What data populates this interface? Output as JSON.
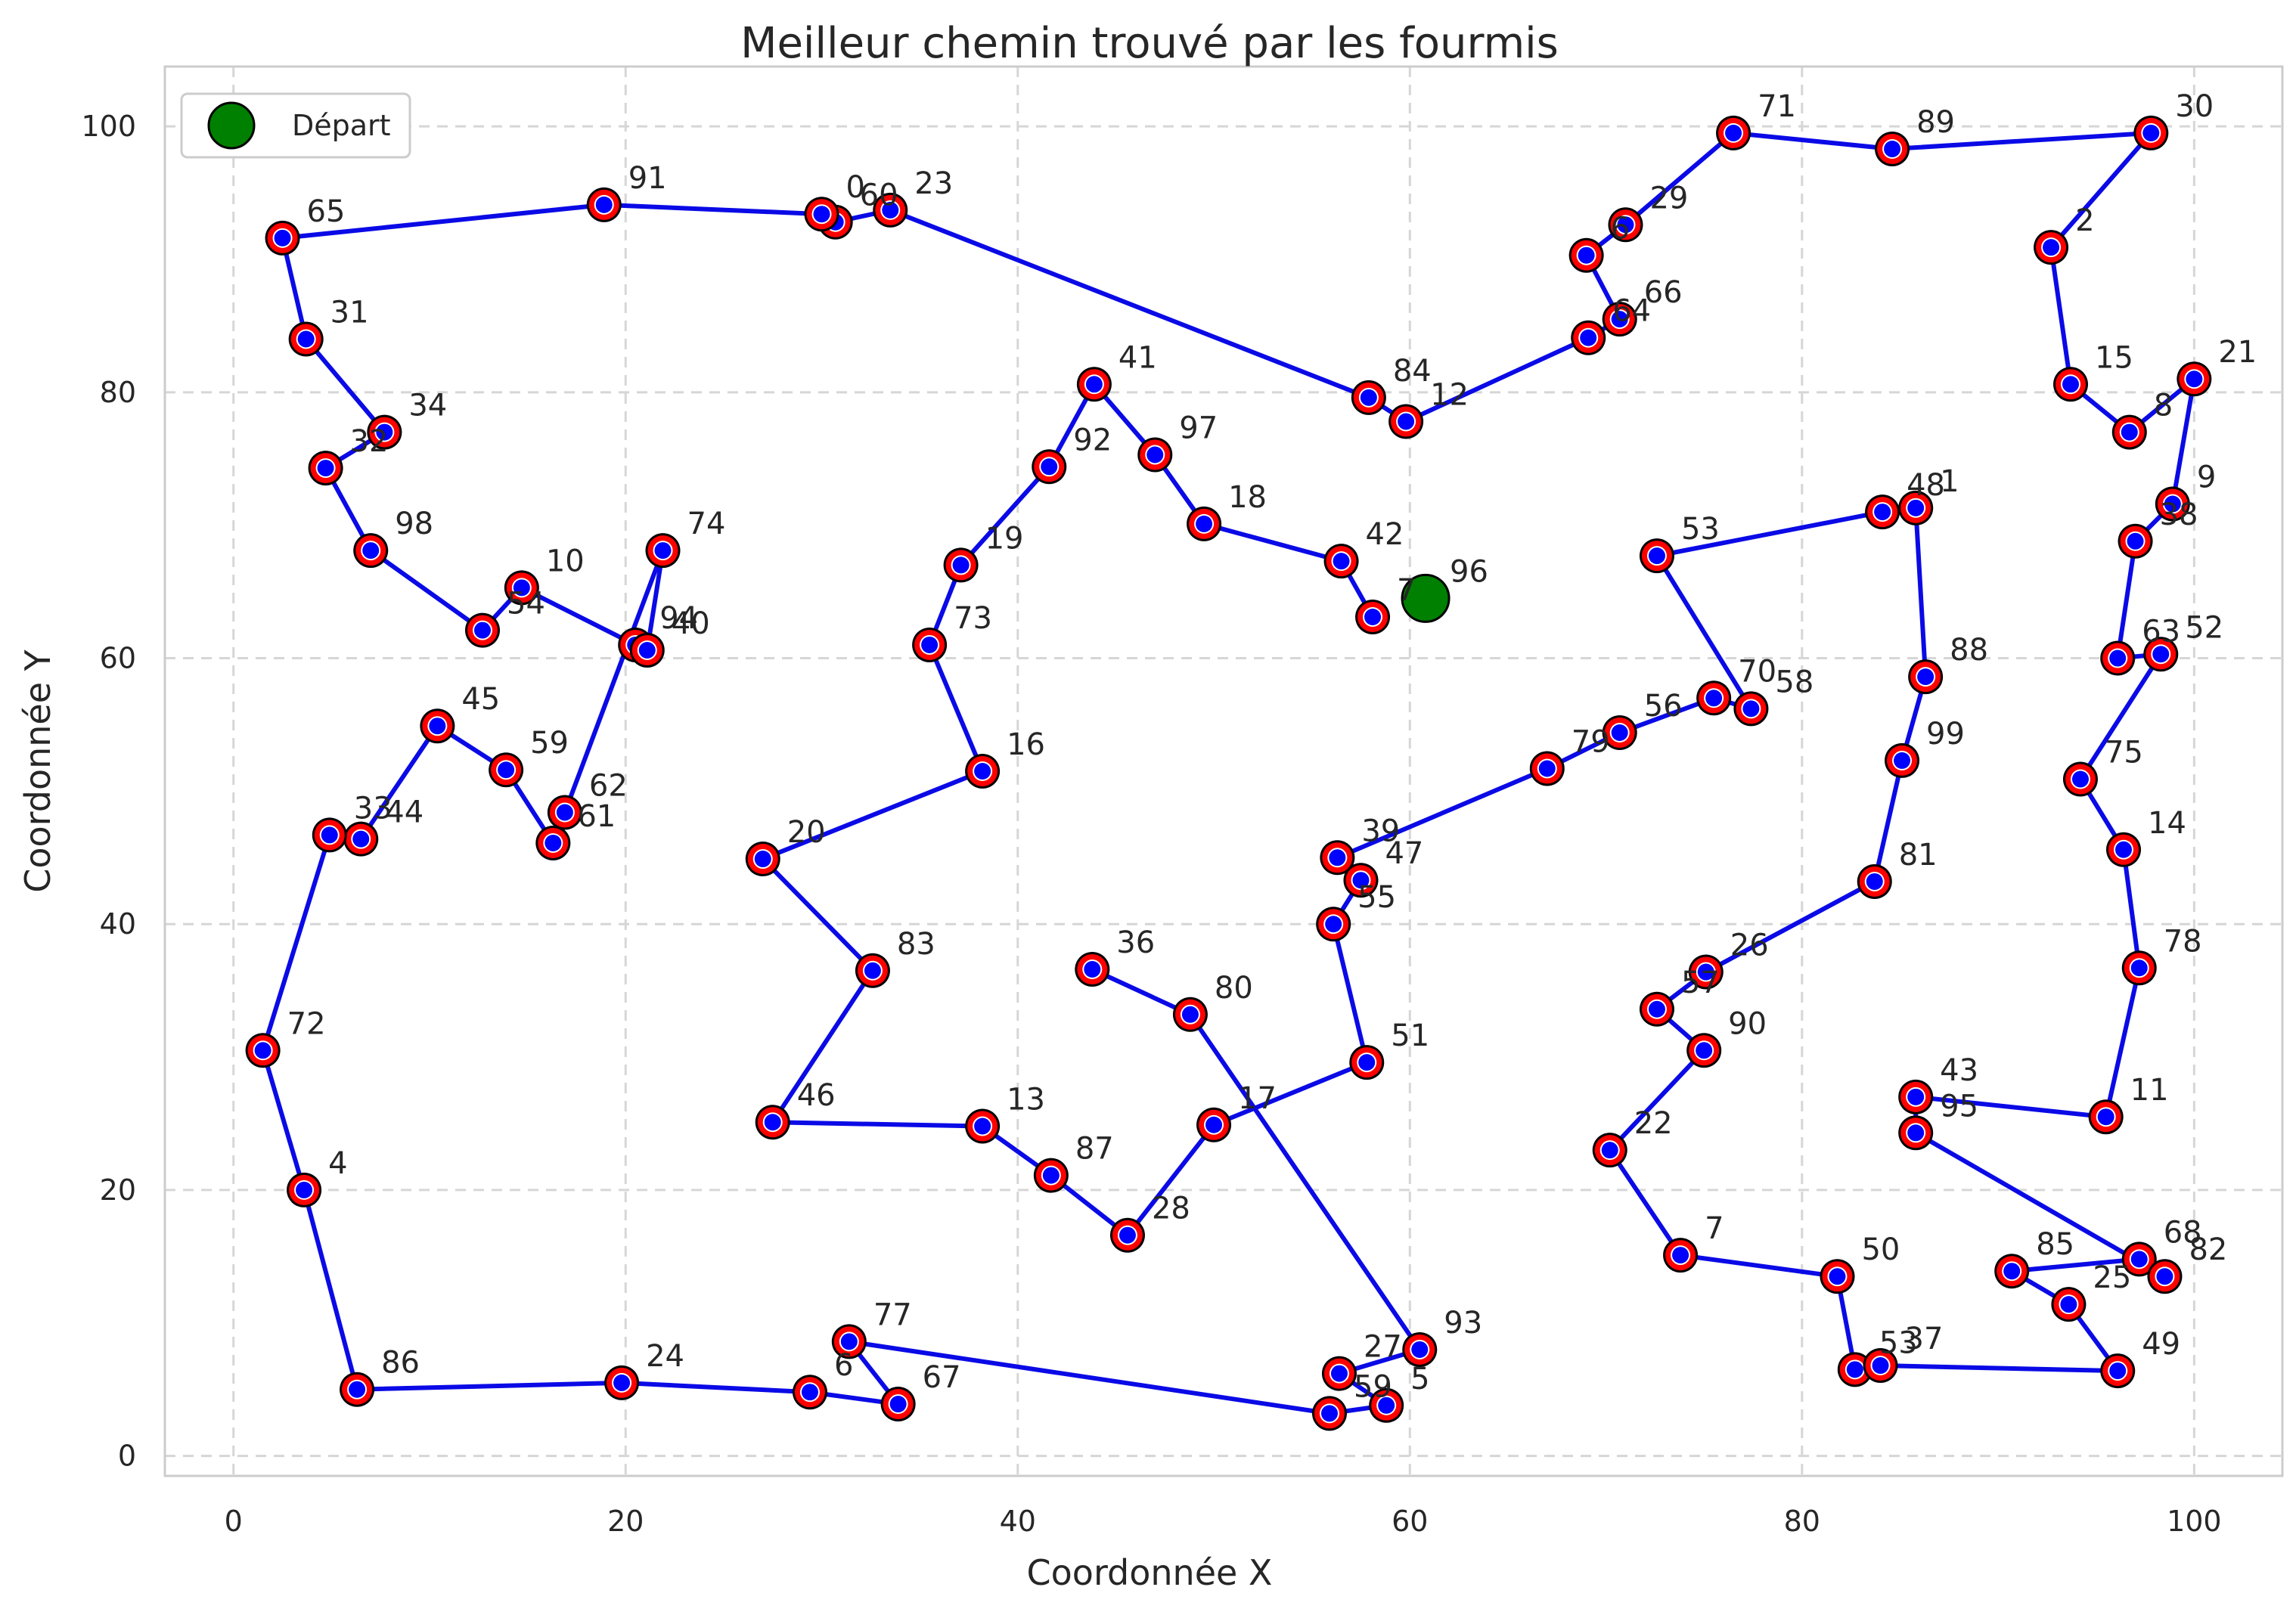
{
  "chart_data": {
    "type": "scatter",
    "title": "Meilleur chemin trouvé par les fourmis",
    "xlabel": "Coordonnée X",
    "ylabel": "Coordonnée Y",
    "xlim": [
      -3.5,
      104.5
    ],
    "ylim": [
      -1.5,
      104.5
    ],
    "xticks": [
      0,
      20,
      40,
      60,
      80,
      100
    ],
    "yticks": [
      0,
      20,
      40,
      60,
      80,
      100
    ],
    "grid": true,
    "legend": {
      "placement": "top-left",
      "entries": [
        "Départ"
      ]
    },
    "colors": {
      "path": "#0a0ae6",
      "node_fill": "#0000ff",
      "node_ring": "#ff0000",
      "start": "#008000",
      "grid": "#d6d6d6"
    },
    "start_node": {
      "id": "96",
      "x": 60.8,
      "y": 64.5
    },
    "nodes": [
      {
        "id": "96",
        "x": 60.8,
        "y": 64.5
      },
      {
        "id": "7",
        "x": 58.1,
        "y": 63.1
      },
      {
        "id": "42",
        "x": 56.5,
        "y": 67.3
      },
      {
        "id": "18",
        "x": 49.5,
        "y": 70.1
      },
      {
        "id": "97",
        "x": 47.0,
        "y": 75.3
      },
      {
        "id": "41",
        "x": 43.9,
        "y": 80.6
      },
      {
        "id": "92",
        "x": 41.6,
        "y": 74.4
      },
      {
        "id": "19",
        "x": 37.1,
        "y": 67.0
      },
      {
        "id": "73",
        "x": 35.5,
        "y": 61.0
      },
      {
        "id": "16",
        "x": 38.2,
        "y": 51.5
      },
      {
        "id": "20",
        "x": 27.0,
        "y": 44.9
      },
      {
        "id": "83",
        "x": 32.6,
        "y": 36.5
      },
      {
        "id": "46",
        "x": 27.5,
        "y": 25.1
      },
      {
        "id": "13",
        "x": 38.2,
        "y": 24.8
      },
      {
        "id": "87",
        "x": 41.7,
        "y": 21.1
      },
      {
        "id": "28",
        "x": 45.6,
        "y": 16.6
      },
      {
        "id": "17",
        "x": 50.0,
        "y": 24.9
      },
      {
        "id": "51",
        "x": 57.8,
        "y": 29.6
      },
      {
        "id": "55",
        "x": 56.1,
        "y": 40.0
      },
      {
        "id": "47",
        "x": 57.5,
        "y": 43.3
      },
      {
        "id": "39",
        "x": 56.3,
        "y": 45.0
      },
      {
        "id": "79",
        "x": 67.0,
        "y": 51.7
      },
      {
        "id": "56",
        "x": 70.7,
        "y": 54.4
      },
      {
        "id": "70",
        "x": 75.5,
        "y": 57.0
      },
      {
        "id": "58",
        "x": 77.4,
        "y": 56.2
      },
      {
        "id": "53",
        "x": 72.6,
        "y": 67.7
      },
      {
        "id": "48",
        "x": 84.1,
        "y": 71.0
      },
      {
        "id": "1",
        "x": 85.8,
        "y": 71.3
      },
      {
        "id": "88",
        "x": 86.3,
        "y": 58.6
      },
      {
        "id": "99",
        "x": 85.1,
        "y": 52.3
      },
      {
        "id": "81",
        "x": 83.7,
        "y": 43.2
      },
      {
        "id": "26",
        "x": 75.1,
        "y": 36.4
      },
      {
        "id": "57",
        "x": 72.6,
        "y": 33.6
      },
      {
        "id": "90",
        "x": 75.0,
        "y": 30.5
      },
      {
        "id": "22",
        "x": 70.2,
        "y": 23.0
      },
      {
        "id": "7b",
        "x": 73.8,
        "y": 15.1
      },
      {
        "id": "50",
        "x": 81.8,
        "y": 13.5
      },
      {
        "id": "53b",
        "x": 82.7,
        "y": 6.5
      },
      {
        "id": "37",
        "x": 84.0,
        "y": 6.8
      },
      {
        "id": "49",
        "x": 96.1,
        "y": 6.4
      },
      {
        "id": "25",
        "x": 93.6,
        "y": 11.4
      },
      {
        "id": "85",
        "x": 90.7,
        "y": 13.9
      },
      {
        "id": "68",
        "x": 97.2,
        "y": 14.8
      },
      {
        "id": "82",
        "x": 98.5,
        "y": 13.5
      },
      {
        "id": "95",
        "x": 85.8,
        "y": 24.3
      },
      {
        "id": "43",
        "x": 85.8,
        "y": 27.0
      },
      {
        "id": "11",
        "x": 95.5,
        "y": 25.5
      },
      {
        "id": "78",
        "x": 97.2,
        "y": 36.7
      },
      {
        "id": "14",
        "x": 96.4,
        "y": 45.6
      },
      {
        "id": "75",
        "x": 94.2,
        "y": 50.9
      },
      {
        "id": "52",
        "x": 98.3,
        "y": 60.3
      },
      {
        "id": "63",
        "x": 96.1,
        "y": 60.0
      },
      {
        "id": "38",
        "x": 97.0,
        "y": 68.8
      },
      {
        "id": "9",
        "x": 98.9,
        "y": 71.6
      },
      {
        "id": "21",
        "x": 100.0,
        "y": 81.0
      },
      {
        "id": "8",
        "x": 96.7,
        "y": 77.0
      },
      {
        "id": "15",
        "x": 93.7,
        "y": 80.6
      },
      {
        "id": "2",
        "x": 92.7,
        "y": 90.9
      },
      {
        "id": "30",
        "x": 97.8,
        "y": 99.5
      },
      {
        "id": "89",
        "x": 84.6,
        "y": 98.3
      },
      {
        "id": "71",
        "x": 76.5,
        "y": 99.5
      },
      {
        "id": "29",
        "x": 71.0,
        "y": 92.6
      },
      {
        "id": "6",
        "x": 69.0,
        "y": 90.3
      },
      {
        "id": "66",
        "x": 70.7,
        "y": 85.5
      },
      {
        "id": "64",
        "x": 69.1,
        "y": 84.1
      },
      {
        "id": "12",
        "x": 59.8,
        "y": 77.8
      },
      {
        "id": "84",
        "x": 57.9,
        "y": 79.6
      },
      {
        "id": "23",
        "x": 33.5,
        "y": 93.7
      },
      {
        "id": "60",
        "x": 30.7,
        "y": 92.8
      },
      {
        "id": "0",
        "x": 30.0,
        "y": 93.4
      },
      {
        "id": "91",
        "x": 18.9,
        "y": 94.1
      },
      {
        "id": "65",
        "x": 2.5,
        "y": 91.6
      },
      {
        "id": "31",
        "x": 3.7,
        "y": 84.0
      },
      {
        "id": "34",
        "x": 7.7,
        "y": 77.0
      },
      {
        "id": "32",
        "x": 4.7,
        "y": 74.3
      },
      {
        "id": "98",
        "x": 7.0,
        "y": 68.1
      },
      {
        "id": "54",
        "x": 12.7,
        "y": 62.1
      },
      {
        "id": "10",
        "x": 14.7,
        "y": 65.3
      },
      {
        "id": "94",
        "x": 20.5,
        "y": 61.0
      },
      {
        "id": "40",
        "x": 21.1,
        "y": 60.6
      },
      {
        "id": "74",
        "x": 21.9,
        "y": 68.1
      },
      {
        "id": "62",
        "x": 16.9,
        "y": 48.4
      },
      {
        "id": "61",
        "x": 16.3,
        "y": 46.1
      },
      {
        "id": "59",
        "x": 13.9,
        "y": 51.6
      },
      {
        "id": "45",
        "x": 10.4,
        "y": 54.9
      },
      {
        "id": "44",
        "x": 6.5,
        "y": 46.4
      },
      {
        "id": "33",
        "x": 4.9,
        "y": 46.7
      },
      {
        "id": "72",
        "x": 1.5,
        "y": 30.5
      },
      {
        "id": "4",
        "x": 3.6,
        "y": 20.0
      },
      {
        "id": "86",
        "x": 6.3,
        "y": 5.0
      },
      {
        "id": "24",
        "x": 19.8,
        "y": 5.5
      },
      {
        "id": "6b",
        "x": 29.4,
        "y": 4.8
      },
      {
        "id": "67",
        "x": 33.9,
        "y": 3.9
      },
      {
        "id": "77",
        "x": 31.4,
        "y": 8.6
      },
      {
        "id": "59b",
        "x": 55.9,
        "y": 3.2
      },
      {
        "id": "5",
        "x": 58.8,
        "y": 3.8
      },
      {
        "id": "27",
        "x": 56.4,
        "y": 6.2
      },
      {
        "id": "93",
        "x": 60.5,
        "y": 8.0
      },
      {
        "id": "80",
        "x": 48.8,
        "y": 33.2
      },
      {
        "id": "36",
        "x": 43.8,
        "y": 36.6
      }
    ],
    "labels": [
      {
        "node": "96",
        "text": "96",
        "dx": 1,
        "dy": 1
      },
      {
        "node": "7",
        "text": "7",
        "dx": 1,
        "dy": 1
      },
      {
        "node": "42",
        "text": "42",
        "dx": 1,
        "dy": 1
      },
      {
        "node": "18",
        "text": "18",
        "dx": 1,
        "dy": 1
      },
      {
        "node": "97",
        "text": "97",
        "dx": 1,
        "dy": 1
      },
      {
        "node": "41",
        "text": "41",
        "dx": 1,
        "dy": 1
      },
      {
        "node": "92",
        "text": "92",
        "dx": 1,
        "dy": 1
      },
      {
        "node": "19",
        "text": "19",
        "dx": 1,
        "dy": 1
      },
      {
        "node": "73",
        "text": "73",
        "dx": 1,
        "dy": 1
      },
      {
        "node": "16",
        "text": "16",
        "dx": 1,
        "dy": 1
      },
      {
        "node": "20",
        "text": "20",
        "dx": 1,
        "dy": 1
      },
      {
        "node": "83",
        "text": "83",
        "dx": 1,
        "dy": 1
      },
      {
        "node": "46",
        "text": "46",
        "dx": 1,
        "dy": 1
      },
      {
        "node": "13",
        "text": "13",
        "dx": 1,
        "dy": 1
      },
      {
        "node": "87",
        "text": "87",
        "dx": 1,
        "dy": 1
      },
      {
        "node": "28",
        "text": "28",
        "dx": 1,
        "dy": 1
      },
      {
        "node": "17",
        "text": "17",
        "dx": 1,
        "dy": 1
      },
      {
        "node": "51",
        "text": "51",
        "dx": 1,
        "dy": 1
      },
      {
        "node": "55",
        "text": "55",
        "dx": 1,
        "dy": 1
      },
      {
        "node": "47",
        "text": "47",
        "dx": 1,
        "dy": 1
      },
      {
        "node": "39",
        "text": "39",
        "dx": 1,
        "dy": 1
      },
      {
        "node": "79",
        "text": "79",
        "dx": 1,
        "dy": 1
      },
      {
        "node": "56",
        "text": "56",
        "dx": 1,
        "dy": 1
      },
      {
        "node": "70",
        "text": "70",
        "dx": 1,
        "dy": 1
      },
      {
        "node": "58",
        "text": "58",
        "dx": 1,
        "dy": 1
      },
      {
        "node": "53",
        "text": "53",
        "dx": 1,
        "dy": 1
      },
      {
        "node": "48",
        "text": "48",
        "dx": 1,
        "dy": 1
      },
      {
        "node": "1",
        "text": "1",
        "dx": 1,
        "dy": 1
      },
      {
        "node": "88",
        "text": "88",
        "dx": 1,
        "dy": 1
      },
      {
        "node": "99",
        "text": "99",
        "dx": 1,
        "dy": 1
      },
      {
        "node": "81",
        "text": "81",
        "dx": 1,
        "dy": 1
      },
      {
        "node": "26",
        "text": "26",
        "dx": 1,
        "dy": 1
      },
      {
        "node": "57",
        "text": "57",
        "dx": 1,
        "dy": 1
      },
      {
        "node": "90",
        "text": "90",
        "dx": 1,
        "dy": 1
      },
      {
        "node": "22",
        "text": "22",
        "dx": 1,
        "dy": 1
      },
      {
        "node": "7b",
        "text": "7",
        "dx": 1,
        "dy": 1
      },
      {
        "node": "50",
        "text": "50",
        "dx": 1,
        "dy": 1
      },
      {
        "node": "53b",
        "text": "53",
        "dx": 1,
        "dy": 1
      },
      {
        "node": "37",
        "text": "37",
        "dx": 1,
        "dy": 1
      },
      {
        "node": "49",
        "text": "49",
        "dx": 1,
        "dy": 1
      },
      {
        "node": "25",
        "text": "25",
        "dx": 1,
        "dy": 1
      },
      {
        "node": "85",
        "text": "85",
        "dx": 1,
        "dy": 1
      },
      {
        "node": "68",
        "text": "68",
        "dx": 1,
        "dy": 1
      },
      {
        "node": "82",
        "text": "82",
        "dx": 1,
        "dy": 1
      },
      {
        "node": "95",
        "text": "95",
        "dx": 1,
        "dy": 1
      },
      {
        "node": "43",
        "text": "43",
        "dx": 1,
        "dy": 1
      },
      {
        "node": "11",
        "text": "11",
        "dx": 1,
        "dy": 1
      },
      {
        "node": "78",
        "text": "78",
        "dx": 1,
        "dy": 1
      },
      {
        "node": "14",
        "text": "14",
        "dx": 1,
        "dy": 1
      },
      {
        "node": "75",
        "text": "75",
        "dx": 1,
        "dy": 1
      },
      {
        "node": "52",
        "text": "52",
        "dx": 1,
        "dy": 1
      },
      {
        "node": "63",
        "text": "63",
        "dx": 1,
        "dy": 1
      },
      {
        "node": "38",
        "text": "38",
        "dx": 1,
        "dy": 1
      },
      {
        "node": "9",
        "text": "9",
        "dx": 1,
        "dy": 1
      },
      {
        "node": "21",
        "text": "21",
        "dx": 1,
        "dy": 1
      },
      {
        "node": "8",
        "text": "8",
        "dx": 1,
        "dy": 1
      },
      {
        "node": "15",
        "text": "15",
        "dx": 1,
        "dy": 1
      },
      {
        "node": "2",
        "text": "2",
        "dx": 1,
        "dy": 1
      },
      {
        "node": "30",
        "text": "30",
        "dx": 1,
        "dy": 1
      },
      {
        "node": "89",
        "text": "89",
        "dx": 1,
        "dy": 1
      },
      {
        "node": "71",
        "text": "71",
        "dx": 1,
        "dy": 1
      },
      {
        "node": "29",
        "text": "29",
        "dx": 1,
        "dy": 1
      },
      {
        "node": "6",
        "text": "6",
        "dx": 1,
        "dy": 1
      },
      {
        "node": "66",
        "text": "66",
        "dx": 1,
        "dy": 1
      },
      {
        "node": "64",
        "text": "64",
        "dx": 1,
        "dy": 1
      },
      {
        "node": "12",
        "text": "12",
        "dx": 1,
        "dy": 1
      },
      {
        "node": "84",
        "text": "84",
        "dx": 1,
        "dy": 1
      },
      {
        "node": "23",
        "text": "23",
        "dx": 1,
        "dy": 1
      },
      {
        "node": "60",
        "text": "60",
        "dx": 1,
        "dy": 1
      },
      {
        "node": "0",
        "text": "0",
        "dx": 1,
        "dy": 1
      },
      {
        "node": "91",
        "text": "91",
        "dx": 1,
        "dy": 1
      },
      {
        "node": "65",
        "text": "65",
        "dx": 1,
        "dy": 1
      },
      {
        "node": "31",
        "text": "31",
        "dx": 1,
        "dy": 1
      },
      {
        "node": "34",
        "text": "34",
        "dx": 1,
        "dy": 1
      },
      {
        "node": "32",
        "text": "32",
        "dx": 1,
        "dy": 1
      },
      {
        "node": "98",
        "text": "98",
        "dx": 1,
        "dy": 1
      },
      {
        "node": "54",
        "text": "54",
        "dx": 1,
        "dy": 1
      },
      {
        "node": "10",
        "text": "10",
        "dx": 1,
        "dy": 1
      },
      {
        "node": "94",
        "text": "94",
        "dx": 1,
        "dy": 1
      },
      {
        "node": "40",
        "text": "40",
        "dx": 1,
        "dy": 1
      },
      {
        "node": "74",
        "text": "74",
        "dx": 1,
        "dy": 1
      },
      {
        "node": "62",
        "text": "62",
        "dx": 1,
        "dy": 1
      },
      {
        "node": "61",
        "text": "61",
        "dx": 1,
        "dy": 1
      },
      {
        "node": "59",
        "text": "59",
        "dx": 1,
        "dy": 1
      },
      {
        "node": "45",
        "text": "45",
        "dx": 1,
        "dy": 1
      },
      {
        "node": "44",
        "text": "44",
        "dx": 1,
        "dy": 1
      },
      {
        "node": "33",
        "text": "33",
        "dx": 1,
        "dy": 1
      },
      {
        "node": "72",
        "text": "72",
        "dx": 1,
        "dy": 1
      },
      {
        "node": "4",
        "text": "4",
        "dx": 1,
        "dy": 1
      },
      {
        "node": "86",
        "text": "86",
        "dx": 1,
        "dy": 1
      },
      {
        "node": "24",
        "text": "24",
        "dx": 1,
        "dy": 1
      },
      {
        "node": "6b",
        "text": "6",
        "dx": 1,
        "dy": 1
      },
      {
        "node": "67",
        "text": "67",
        "dx": 1,
        "dy": 1
      },
      {
        "node": "77",
        "text": "77",
        "dx": 1,
        "dy": 1
      },
      {
        "node": "59b",
        "text": "59",
        "dx": 1,
        "dy": 1
      },
      {
        "node": "5",
        "text": "5",
        "dx": 1,
        "dy": 1
      },
      {
        "node": "27",
        "text": "27",
        "dx": 1,
        "dy": 1
      },
      {
        "node": "93",
        "text": "93",
        "dx": 1,
        "dy": 1
      },
      {
        "node": "80",
        "text": "80",
        "dx": 1,
        "dy": 1
      },
      {
        "node": "36",
        "text": "36",
        "dx": 1,
        "dy": 1
      }
    ],
    "path": [
      "7",
      "42",
      "18",
      "97",
      "41",
      "92",
      "19",
      "73",
      "16",
      "20",
      "83",
      "46",
      "13",
      "87",
      "28",
      "17",
      "51",
      "55",
      "47",
      "39",
      "79",
      "56",
      "70",
      "58",
      "53",
      "48",
      "1",
      "88",
      "99",
      "81",
      "26",
      "57",
      "90",
      "22",
      "7b",
      "50",
      "53b",
      "37",
      "49",
      "25",
      "85",
      "68",
      "82",
      "95",
      "43",
      "11",
      "78",
      "14",
      "75",
      "52",
      "63",
      "38",
      "9",
      "21",
      "8",
      "15",
      "2",
      "30",
      "89",
      "71",
      "29",
      "6",
      "66",
      "64",
      "12",
      "84",
      "23",
      "60",
      "0",
      "91",
      "65",
      "31",
      "34",
      "32",
      "98",
      "54",
      "10",
      "94",
      "40",
      "74",
      "62",
      "61",
      "59",
      "45",
      "44",
      "33",
      "72",
      "4",
      "86",
      "24",
      "6b",
      "67",
      "77",
      "59b",
      "5",
      "27",
      "93",
      "80",
      "36"
    ]
  }
}
